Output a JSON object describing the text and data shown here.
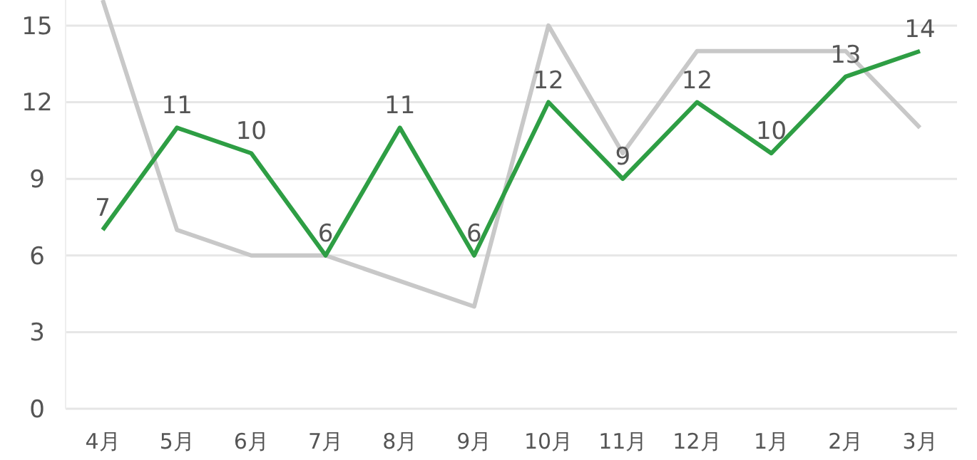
{
  "chart_data": {
    "type": "line",
    "categories": [
      "4月",
      "5月",
      "6月",
      "7月",
      "8月",
      "9月",
      "10月",
      "11月",
      "12月",
      "1月",
      "2月",
      "3月"
    ],
    "series": [
      {
        "color": "#c8c8c8",
        "values": [
          16,
          7,
          6,
          6,
          5,
          4,
          15,
          10,
          14,
          14,
          14,
          11
        ]
      },
      {
        "color": "#2e9e44",
        "values": [
          7,
          11,
          10,
          6,
          11,
          6,
          12,
          9,
          12,
          10,
          13,
          14
        ],
        "value_labels": [
          "7",
          "11",
          "10",
          "6",
          "11",
          "6",
          "12",
          "9",
          "12",
          "10",
          "13",
          "14"
        ]
      }
    ],
    "ylim": [
      0,
      16
    ],
    "yticks": [
      0,
      3,
      6,
      9,
      12,
      15
    ],
    "grid": "y",
    "marker": "none",
    "line_style": "solid"
  }
}
